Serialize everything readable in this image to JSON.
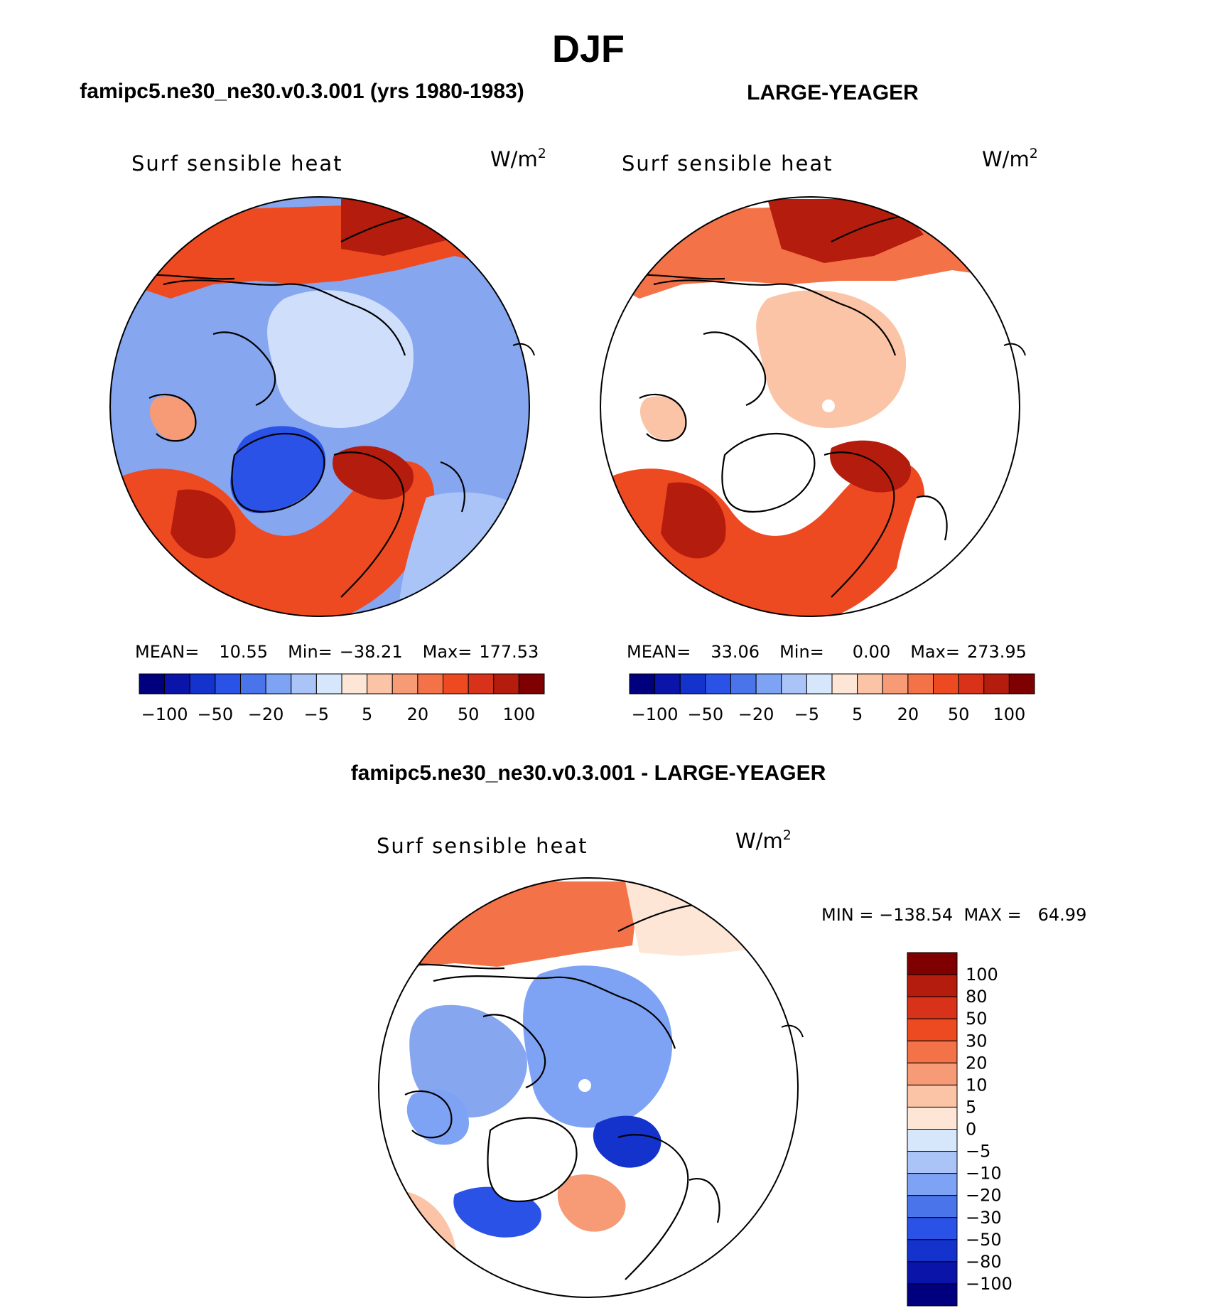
{
  "title": "DJF",
  "panels": [
    {
      "header": "famipc5.ne30_ne30.v0.3.001 (yrs 1980-1983)",
      "variable": "Surf sensible heat",
      "units_base": "W/m",
      "units_exp": "2",
      "stats": {
        "mean_label": "MEAN=",
        "mean": "10.55",
        "min_label": "Min=",
        "min": "−38.21",
        "max_label": "Max=",
        "max": "177.53"
      },
      "colorbar_labels": [
        "−100",
        "−50",
        "−20",
        "−5",
        "5",
        "20",
        "50",
        "100"
      ]
    },
    {
      "header": "LARGE-YEAGER",
      "variable": "Surf sensible heat",
      "units_base": "W/m",
      "units_exp": "2",
      "stats": {
        "mean_label": "MEAN=",
        "mean": "33.06",
        "min_label": "Min=",
        "min": "0.00",
        "max_label": "Max=",
        "max": "273.95"
      },
      "colorbar_labels": [
        "−100",
        "−50",
        "−20",
        "−5",
        "5",
        "20",
        "50",
        "100"
      ]
    },
    {
      "header": "famipc5.ne30_ne30.v0.3.001 - LARGE-YEAGER",
      "variable": "Surf sensible heat",
      "units_base": "W/m",
      "units_exp": "2",
      "minmax_text": "MIN = −138.54  MAX =   64.99",
      "colorbar_labels": [
        "100",
        "80",
        "50",
        "30",
        "20",
        "10",
        "5",
        "0",
        "−5",
        "−10",
        "−20",
        "−30",
        "−50",
        "−80",
        "−100"
      ]
    }
  ],
  "palette": [
    "#00007f",
    "#0a14a8",
    "#1432cc",
    "#2b52e6",
    "#4a74ea",
    "#7ea3f4",
    "#aac4f8",
    "#d6e7fb",
    "#fde6d6",
    "#fbc4a6",
    "#f79b76",
    "#f47248",
    "#ee4a22",
    "#d8321a",
    "#b41c0e",
    "#7f0000"
  ],
  "colors": {
    "land_line": "#000000",
    "ocean_none": "#ffffff"
  }
}
